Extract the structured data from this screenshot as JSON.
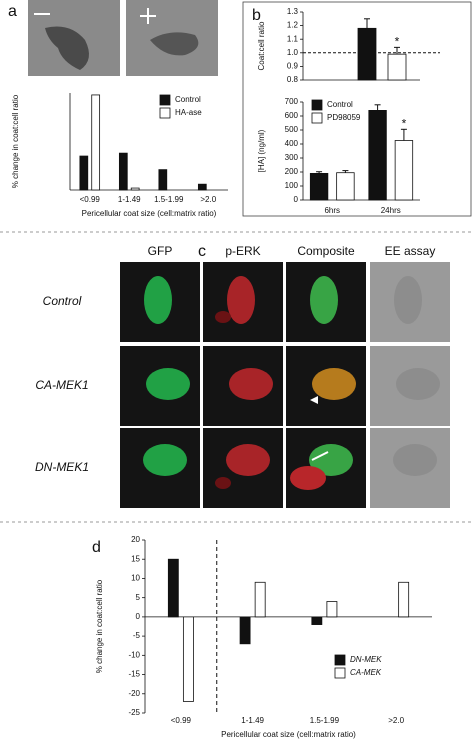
{
  "panel_labels": [
    "a",
    "b",
    "c",
    "d"
  ],
  "micrographs": {
    "columns": [
      "GFP",
      "p-ERK",
      "Composite",
      "EE assay"
    ],
    "rows": [
      "Control",
      "CA-MEK1",
      "DN-MEK1"
    ]
  },
  "chart_data": [
    {
      "type": "bar",
      "categories": [
        "<0.99",
        "1-1.49",
        "1.5-1.99",
        ">2.0"
      ],
      "series": [
        {
          "name": "Control",
          "color": "#111111",
          "values": [
            35,
            38,
            21,
            6
          ]
        },
        {
          "name": "HA-ase",
          "color": "#ffffff",
          "values": [
            98,
            2,
            0,
            0
          ]
        }
      ],
      "ylim": [
        0,
        100
      ],
      "ylabel": "% change in coat:cell ratio",
      "xlabel": "Pericellular coat size (cell:matrix ratio)",
      "legend": "upper right"
    },
    {
      "type": "bar",
      "values": [
        1.18,
        0.99
      ],
      "errors": [
        0.07,
        0.05
      ],
      "colors": [
        "#111111",
        "#ffffff"
      ],
      "ylim": [
        0.8,
        1.3
      ],
      "yticks": [
        0.8,
        0.9,
        {
          "value": 1.0,
          "label": "1.0"
        },
        1.1,
        1.2,
        1.3
      ],
      "reference_line": 1.0,
      "annotations": [
        "*"
      ],
      "ylabel": "Coat:cell ratio"
    },
    {
      "type": "bar",
      "categories": [
        "6hrs",
        "24hrs"
      ],
      "series": [
        {
          "name": "Control",
          "color": "#111111",
          "values": [
            190,
            640
          ],
          "errors": [
            12,
            40
          ]
        },
        {
          "name": "PD98059",
          "color": "#ffffff",
          "values": [
            195,
            425
          ],
          "errors": [
            15,
            80
          ]
        }
      ],
      "ylim": [
        0,
        700
      ],
      "yticks": [
        0,
        100,
        200,
        300,
        400,
        500,
        600,
        700
      ],
      "annotations": [
        "*"
      ],
      "ylabel": "[HA] (ng/ml)",
      "legend": "upper left"
    },
    {
      "type": "bar",
      "categories": [
        "<0.99",
        "1-1.49",
        "1.5-1.99",
        ">2.0"
      ],
      "series": [
        {
          "name": "DN-MEK",
          "color": "#111111",
          "values": [
            15,
            -7,
            -2,
            0
          ]
        },
        {
          "name": "CA-MEK",
          "color": "#ffffff",
          "values": [
            -22,
            9,
            4,
            9
          ]
        }
      ],
      "ylim": [
        -25,
        20
      ],
      "yticks": [
        -25,
        -20,
        -15,
        -10,
        -5,
        0,
        5,
        10,
        15,
        20
      ],
      "ylabel": "% change in coat:cell ratio",
      "xlabel": "Pericellular coat size (cell:matrix ratio)",
      "legend": "lower right"
    }
  ]
}
